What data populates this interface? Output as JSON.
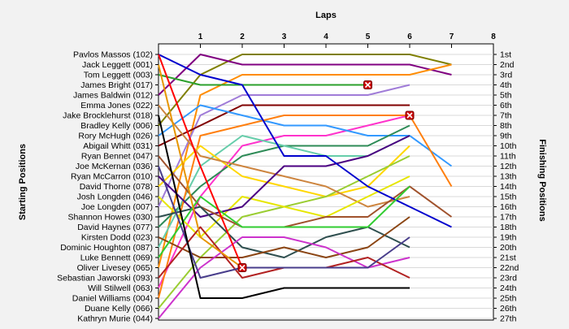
{
  "chart_data": {
    "type": "line",
    "x_axis_title": "Laps",
    "left_axis_title": "Starting Positions",
    "right_axis_title": "Finishing Positions",
    "x_ticks": [
      1,
      2,
      3,
      4,
      5,
      6,
      7,
      8
    ],
    "xlim": [
      0,
      8
    ],
    "ylim": [
      1,
      27
    ],
    "starting_labels": [
      "Pavlos Massos (102)",
      "Jack Leggett (001)",
      "Tom Leggett (003)",
      "James Bright (017)",
      "James Baldwin (012)",
      "Emma Jones (022)",
      "Jake Brocklehurst (018)",
      "Bradley Kelly (006)",
      "Rory McHugh (026)",
      "Abigail Whitt (031)",
      "Ryan Bennet (047)",
      "Joe McKernan (036)",
      "Ryan McCarron (010)",
      "David Thorne (078)",
      "Josh Longden (046)",
      "Joe Longden (007)",
      "Shannon Howes (030)",
      "David Haynes (077)",
      "Kirsten Dodd (023)",
      "Dominic Houghton (087)",
      "Luke Bennett (069)",
      "Oliver Livesey (065)",
      "Sebastian Jaworski (093)",
      "Will Stilwell (063)",
      "Daniel Williams (004)",
      "Duane Kelly (066)",
      "Kathryn Murie (044)"
    ],
    "finishing_labels": [
      "1st",
      "2nd",
      "3rd",
      "4th",
      "5th",
      "6th",
      "7th",
      "8th",
      "9th",
      "10th",
      "11th",
      "12th",
      "13th",
      "14th",
      "15th",
      "16th",
      "17th",
      "18th",
      "19th",
      "20th",
      "21st",
      "22nd",
      "23rd",
      "24th",
      "25th",
      "26th",
      "27th"
    ],
    "grid": true,
    "series": [
      {
        "color": "#7f7f00",
        "values": [
          8,
          3,
          1,
          1,
          1,
          1,
          1,
          2
        ]
      },
      {
        "color": "#800080",
        "values": [
          5,
          1,
          2,
          2,
          2,
          2,
          2,
          3
        ]
      },
      {
        "color": "#ff8c00",
        "values": [
          22,
          5,
          3,
          3,
          3,
          3,
          3,
          2
        ]
      },
      {
        "color": "#2ca02c",
        "values": [
          3,
          4,
          4,
          4,
          4,
          4
        ],
        "dnf": true
      },
      {
        "color": "#a07cd8",
        "values": [
          16,
          7,
          5,
          5,
          5,
          5,
          4
        ]
      },
      {
        "color": "#800000",
        "values": [
          10,
          8,
          6,
          6,
          6,
          6,
          6
        ]
      },
      {
        "color": "#ff33cc",
        "values": [
          24,
          15,
          10,
          9,
          9,
          8,
          7
        ],
        "dnf": true
      },
      {
        "color": "#3399ff",
        "values": [
          9,
          6,
          7,
          8,
          8,
          9,
          9,
          12
        ]
      },
      {
        "color": "#2e8b57",
        "values": [
          18,
          14,
          11,
          10,
          10,
          10,
          8
        ]
      },
      {
        "color": "#66cdaa",
        "values": [
          20,
          12,
          9,
          10,
          11,
          11,
          9
        ]
      },
      {
        "color": "#ff7f0e",
        "values": [
          25,
          9,
          8,
          7,
          7,
          7,
          7,
          14
        ]
      },
      {
        "color": "#ffd700",
        "values": [
          14,
          10,
          13,
          14,
          15,
          14,
          10
        ]
      },
      {
        "color": "#9acd32",
        "values": [
          26,
          21,
          17,
          16,
          15,
          13,
          11
        ]
      },
      {
        "color": "#cd853f",
        "values": [
          6,
          11,
          12,
          13,
          14,
          16,
          15
        ]
      },
      {
        "color": "#e6e600",
        "values": [
          15,
          19,
          15,
          16,
          17,
          15,
          13
        ]
      },
      {
        "color": "#4b0082",
        "values": [
          13,
          17,
          16,
          12,
          12,
          11,
          9
        ]
      },
      {
        "color": "#a0522d",
        "values": [
          11,
          16,
          18,
          18,
          17,
          17,
          14,
          17
        ]
      },
      {
        "color": "#0000cd",
        "values": [
          1,
          3,
          4,
          11,
          11,
          14,
          16,
          18
        ]
      },
      {
        "color": "#2f4f4f",
        "values": [
          17,
          16,
          20,
          21,
          19,
          18,
          20
        ]
      },
      {
        "color": "#8b4513",
        "values": [
          19,
          21,
          21,
          20,
          21,
          20,
          17
        ]
      },
      {
        "color": "#32cd32",
        "values": [
          21,
          15,
          18,
          18,
          18,
          18,
          14
        ]
      },
      {
        "color": "#cc33cc",
        "values": [
          27,
          22,
          19,
          19,
          20,
          22,
          21
        ]
      },
      {
        "color": "#b22222",
        "values": [
          23,
          18,
          23,
          22,
          22,
          21,
          23
        ]
      },
      {
        "color": "#483d8b",
        "values": [
          12,
          23,
          22,
          22,
          22,
          22,
          19
        ]
      },
      {
        "color": "#000000",
        "values": [
          7,
          25,
          25,
          24,
          24,
          24,
          24
        ]
      },
      {
        "color": "#ff0000",
        "values": [
          1,
          12,
          22
        ],
        "dnf": true
      },
      {
        "color": "#e69500",
        "values": [
          2,
          19,
          22
        ]
      }
    ]
  }
}
